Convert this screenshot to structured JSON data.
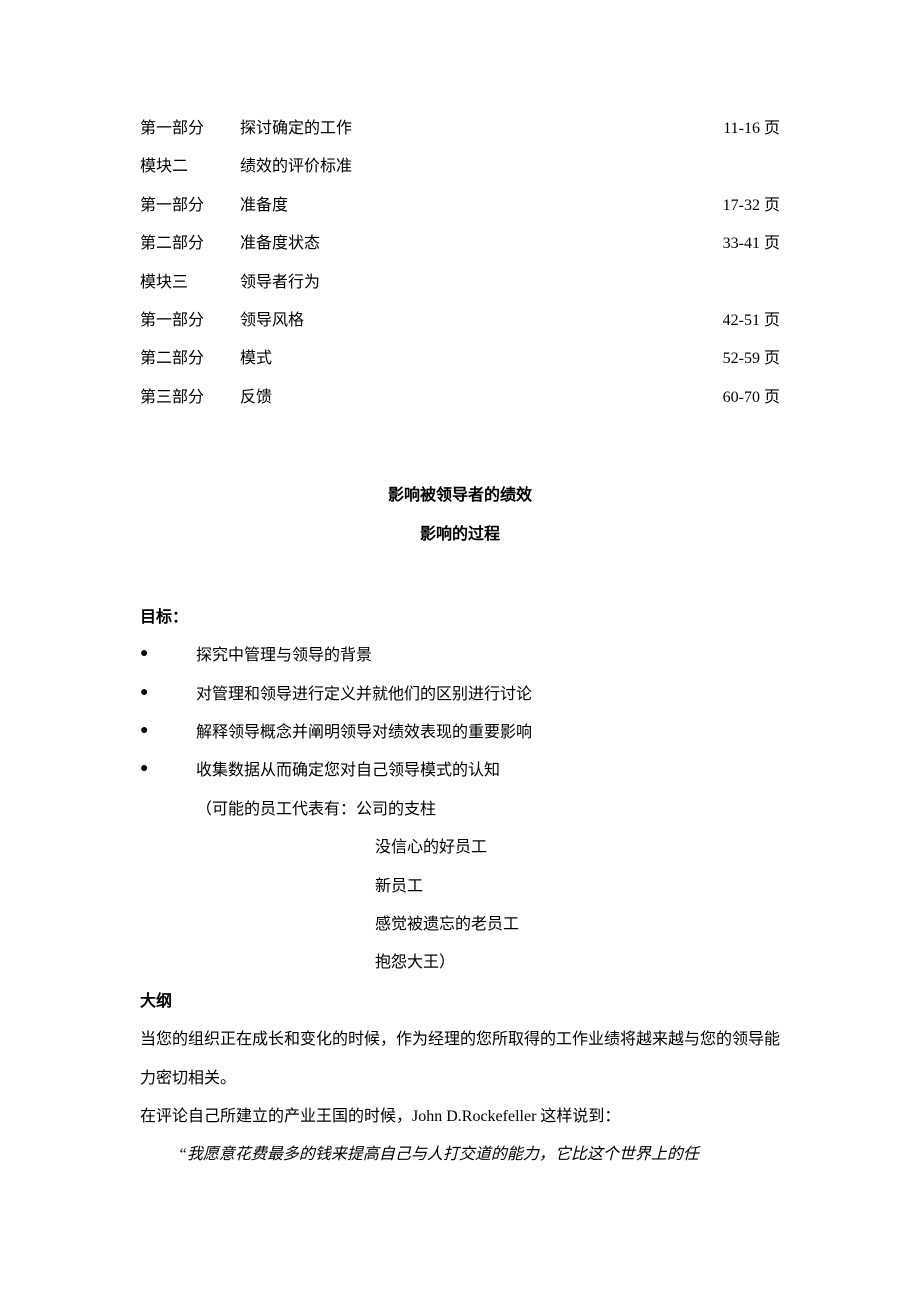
{
  "toc": [
    {
      "label": "第一部分",
      "title": "探讨确定的工作",
      "pages": "11-16 页"
    },
    {
      "label": "模块二",
      "title": "绩效的评价标准",
      "pages": ""
    },
    {
      "label": "第一部分",
      "title": "准备度",
      "pages": "17-32 页"
    },
    {
      "label": "第二部分",
      "title": "准备度状态",
      "pages": "33-41 页"
    },
    {
      "label": "模块三",
      "title": "领导者行为",
      "pages": ""
    },
    {
      "label": "第一部分",
      "title": "领导风格",
      "pages": "42-51 页"
    },
    {
      "label": "第二部分",
      "title": "模式",
      "pages": "52-59 页"
    },
    {
      "label": "第三部分",
      "title": "反馈",
      "pages": "60-70 页"
    }
  ],
  "section": {
    "title": "影响被领导者的绩效",
    "subtitle": "影响的过程"
  },
  "goals": {
    "heading": "目标：",
    "items": [
      "探究中管理与领导的背景",
      "对管理和领导进行定义并就他们的区别进行讨论",
      "解释领导概念并阐明领导对绩效表现的重要影响",
      "收集数据从而确定您对自己领导模式的认知"
    ],
    "employees_intro": "（可能的员工代表有：公司的支柱",
    "employees": [
      "没信心的好员工",
      "新员工",
      "感觉被遗忘的老员工",
      "抱怨大王）"
    ]
  },
  "outline": {
    "heading": "大纲",
    "p1": "当您的组织正在成长和变化的时候，作为经理的您所取得的工作业绩将越来越与您的领导能力密切相关。",
    "p2": "在评论自己所建立的产业王国的时候，John D.Rockefeller 这样说到：",
    "quote": "“我愿意花费最多的钱来提高自己与人打交道的能力，它比这个世界上的任"
  }
}
